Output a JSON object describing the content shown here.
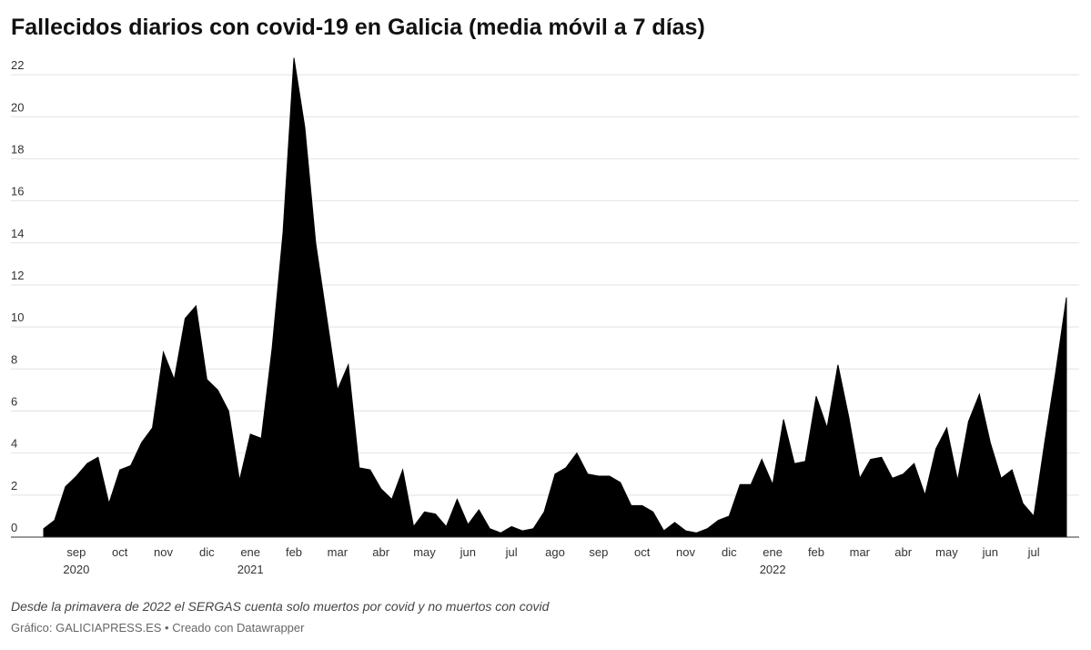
{
  "chart_data": {
    "type": "area",
    "title": "Fallecidos diarios con covid-19 en Galicia (media móvil a 7 días)",
    "note": "Desde la primavera de 2022 el SERGAS cuenta solo muertos por covid y no muertos con covid",
    "source": "Gráfico: GALICIAPRESS.ES • Creado con Datawrapper",
    "categories": [
      null,
      null,
      null,
      "sep 2020",
      null,
      null,
      null,
      "oct",
      null,
      null,
      null,
      "nov",
      null,
      null,
      null,
      "dic",
      null,
      null,
      null,
      "ene 2021",
      null,
      null,
      null,
      "feb",
      null,
      null,
      null,
      "mar",
      null,
      null,
      null,
      "abr",
      null,
      null,
      null,
      "may",
      null,
      null,
      null,
      "jun",
      null,
      null,
      null,
      "jul",
      null,
      null,
      null,
      "ago",
      null,
      null,
      null,
      "sep",
      null,
      null,
      null,
      "oct",
      null,
      null,
      null,
      "nov",
      null,
      null,
      null,
      "dic",
      null,
      null,
      null,
      "ene 2022",
      null,
      null,
      null,
      "feb",
      null,
      null,
      null,
      "mar",
      null,
      null,
      null,
      "abr",
      null,
      null,
      null,
      "may",
      null,
      null,
      null,
      "jun",
      null,
      null,
      null,
      "jul",
      null,
      null,
      null
    ],
    "values": [
      0.4,
      0.8,
      2.4,
      2.9,
      3.5,
      3.8,
      1.6,
      3.2,
      3.4,
      4.5,
      5.2,
      8.8,
      7.5,
      10.4,
      11.0,
      7.5,
      7.0,
      6.0,
      2.7,
      4.9,
      4.7,
      9.0,
      14.5,
      22.8,
      19.5,
      14.0,
      10.5,
      7.0,
      8.2,
      3.3,
      3.2,
      2.3,
      1.8,
      3.2,
      0.5,
      1.2,
      1.1,
      0.5,
      1.8,
      0.6,
      1.3,
      0.4,
      0.2,
      0.5,
      0.3,
      0.4,
      1.2,
      3.0,
      3.3,
      4.0,
      3.0,
      2.9,
      2.9,
      2.6,
      1.5,
      1.5,
      1.2,
      0.3,
      0.7,
      0.3,
      0.2,
      0.4,
      0.8,
      1.0,
      2.5,
      2.5,
      3.7,
      2.5,
      5.6,
      3.5,
      3.6,
      6.7,
      5.2,
      8.2,
      5.7,
      2.8,
      3.7,
      3.8,
      2.8,
      3.0,
      3.5,
      2.0,
      4.2,
      5.2,
      2.7,
      5.5,
      6.8,
      4.5,
      2.8,
      3.2,
      1.6,
      1.0,
      4.5,
      7.8,
      11.4
    ],
    "color": "#000000",
    "ylim": [
      0,
      23
    ],
    "yticks": [
      0,
      2,
      4,
      6,
      8,
      10,
      12,
      14,
      16,
      18,
      20,
      22
    ],
    "grid": true
  }
}
